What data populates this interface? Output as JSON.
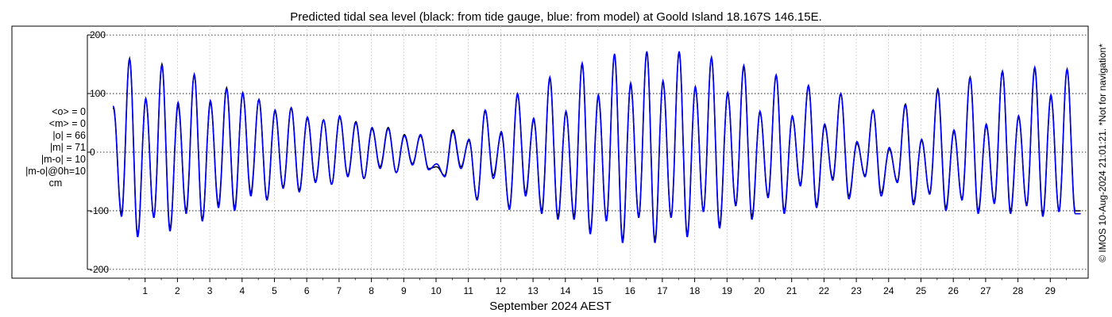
{
  "chart_data": {
    "type": "line",
    "title": "Predicted tidal sea level (black: from tide gauge, blue: from model) at Goold Island 18.167S 146.15E.",
    "xlabel": "September 2024 AEST",
    "ylabel": "",
    "x_range_days": [
      0,
      31
    ],
    "x_ticks": [
      1,
      2,
      3,
      4,
      5,
      6,
      7,
      8,
      9,
      10,
      11,
      12,
      13,
      14,
      15,
      16,
      17,
      18,
      19,
      20,
      21,
      22,
      23,
      24,
      25,
      26,
      27,
      28,
      29
    ],
    "ylim": [
      -215,
      215
    ],
    "y_ticks": [
      -200,
      -100,
      0,
      100,
      200
    ],
    "y_tick_labels": [
      "-200",
      "-100",
      "0",
      "100",
      "200"
    ],
    "grid": true,
    "watermark": "© IMOS 10-Aug-2024 21:01:21. *Not for navigation*",
    "stats": [
      "<o> = 0",
      "<m> = 0",
      "|o| = 66",
      "|m| = 71",
      "|m-o| = 10",
      "|m-o|@0h=10",
      "cm"
    ],
    "series": [
      {
        "name": "tide gauge",
        "color": "#000000",
        "daily_high_cm": [
          160,
          150,
          133,
          110,
          90,
          76,
          55,
          52,
          42,
          28,
          38,
          70,
          98,
          125,
          150,
          165,
          170,
          170,
          160,
          145,
          130,
          112,
          100,
          72,
          82,
          108,
          128,
          138,
          142,
          140
        ],
        "daily_low_cm": [
          -140,
          -130,
          -115,
          -95,
          -80,
          -65,
          -55,
          -45,
          -35,
          -28,
          -25,
          -40,
          -70,
          -110,
          -135,
          -150,
          -150,
          -140,
          -125,
          -110,
          -100,
          -90,
          -75,
          -70,
          -85,
          -95,
          -100,
          -100,
          -105,
          -100
        ],
        "daily_second_high_cm": [
          75,
          90,
          80,
          85,
          100,
          70,
          58,
          60,
          40,
          30,
          -25,
          20,
          32,
          55,
          68,
          95,
          115,
          120,
          110,
          100,
          68,
          60,
          45,
          15,
          5,
          20,
          35,
          45,
          60,
          95
        ],
        "daily_second_low_cm": [
          -105,
          -110,
          -100,
          -90,
          -70,
          -60,
          -50,
          -40,
          -25,
          -20,
          -40,
          -80,
          -95,
          -100,
          -110,
          -115,
          -110,
          -110,
          -100,
          -90,
          -75,
          -55,
          -45,
          -40,
          -50,
          -70,
          -80,
          -85,
          -90,
          -100
        ]
      },
      {
        "name": "model",
        "color": "#0000ff",
        "daily_high_cm": [
          158,
          148,
          132,
          108,
          90,
          75,
          55,
          50,
          40,
          30,
          35,
          72,
          100,
          128,
          152,
          168,
          172,
          172,
          162,
          148,
          132,
          114,
          100,
          72,
          80,
          105,
          126,
          138,
          145,
          142
        ],
        "daily_low_cm": [
          -145,
          -135,
          -118,
          -100,
          -82,
          -68,
          -55,
          -45,
          -35,
          -30,
          -28,
          -45,
          -75,
          -115,
          -140,
          -155,
          -155,
          -145,
          -130,
          -115,
          -105,
          -95,
          -80,
          -75,
          -90,
          -100,
          -105,
          -105,
          -110,
          -105
        ],
        "daily_second_high_cm": [
          78,
          92,
          85,
          88,
          102,
          72,
          60,
          62,
          42,
          28,
          -20,
          22,
          35,
          58,
          70,
          98,
          118,
          122,
          112,
          102,
          70,
          62,
          48,
          18,
          8,
          22,
          38,
          48,
          62,
          98
        ],
        "daily_second_low_cm": [
          -110,
          -112,
          -105,
          -95,
          -75,
          -62,
          -52,
          -42,
          -28,
          -22,
          -42,
          -82,
          -98,
          -105,
          -115,
          -118,
          -112,
          -112,
          -102,
          -92,
          -78,
          -58,
          -48,
          -42,
          -52,
          -72,
          -82,
          -88,
          -92,
          -102
        ]
      }
    ]
  }
}
